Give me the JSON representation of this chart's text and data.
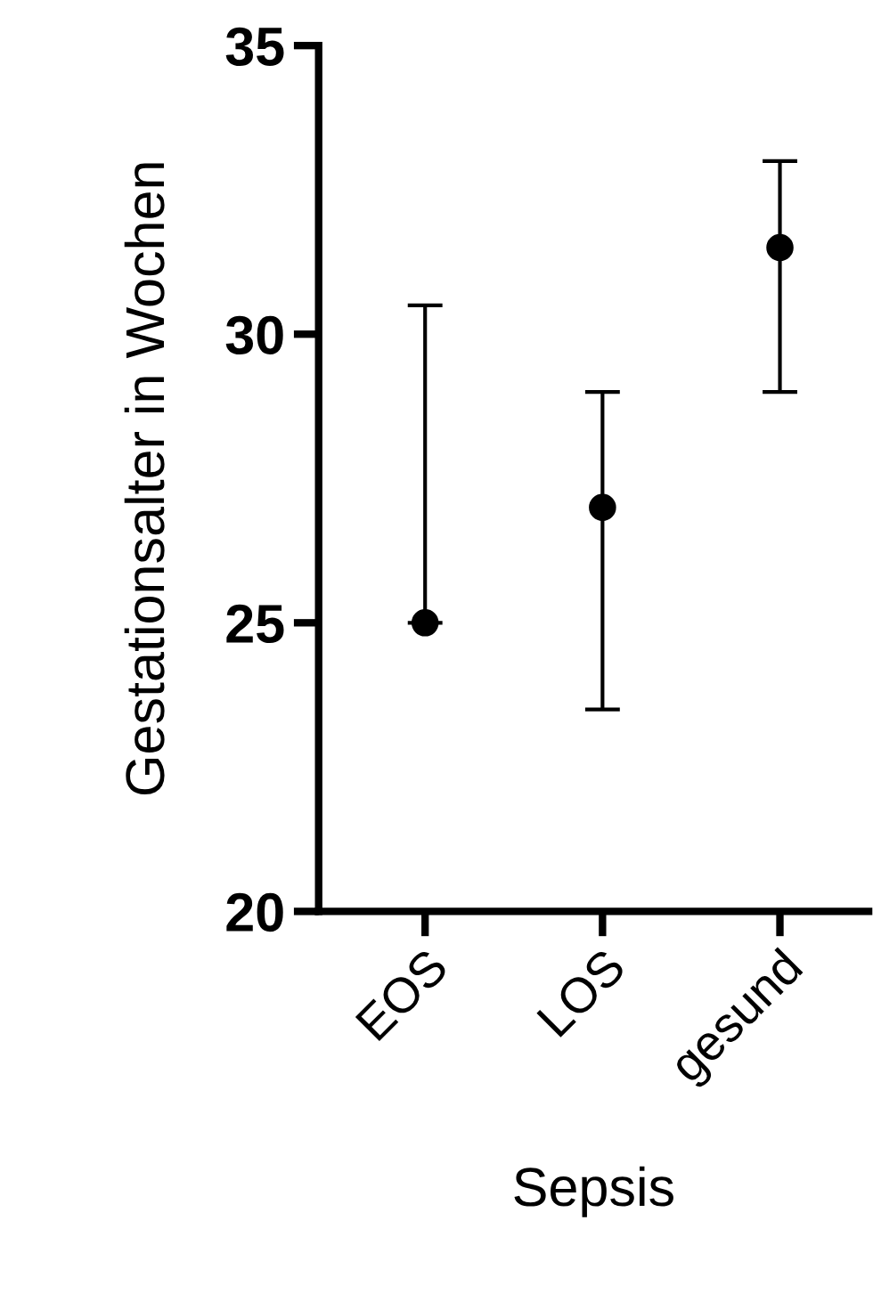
{
  "chart_data": {
    "type": "scatter",
    "xlabel": "Sepsis",
    "ylabel": "Gestationsalter in Wochen",
    "categories": [
      "EOS",
      "LOS",
      "gesund"
    ],
    "values": [
      25,
      27,
      31.5
    ],
    "errors": [
      [
        25,
        30.5
      ],
      [
        23.5,
        29
      ],
      [
        29,
        33
      ]
    ],
    "color": "#000000",
    "marker": "circle",
    "ylim": [
      20,
      35
    ],
    "yticks": [
      20,
      25,
      30,
      35
    ],
    "grid": false,
    "legend": false
  }
}
